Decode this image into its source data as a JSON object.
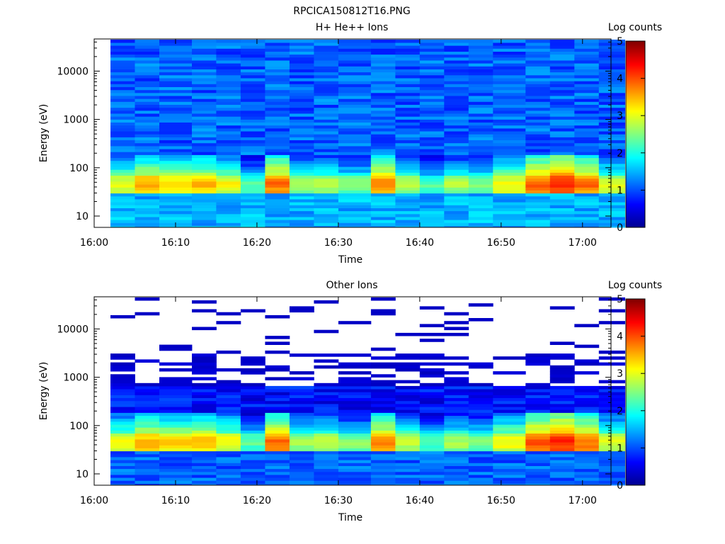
{
  "figure_title": "RPCICA150812T16.PNG",
  "colors": {
    "colormap": [
      "#00008f",
      "#0000ff",
      "#0080ff",
      "#00ffff",
      "#80ff80",
      "#ffff00",
      "#ff8000",
      "#ff0000",
      "#800000"
    ],
    "background": "#ffffff",
    "axis": "#000000"
  },
  "chart_data": [
    {
      "type": "heatmap",
      "id": "top",
      "title": "H+ He++ Ions",
      "xlabel": "Time",
      "ylabel": "Energy (eV)",
      "yscale": "log",
      "x_ticks": [
        "16:00",
        "16:10",
        "16:20",
        "16:30",
        "16:40",
        "16:50",
        "17:00"
      ],
      "y_ticks": [
        "10",
        "100",
        "1000",
        "10000"
      ],
      "colorbar": {
        "label": "Log counts",
        "ticks": [
          "0",
          "1",
          "2",
          "3",
          "4",
          "5"
        ],
        "range": [
          0,
          5
        ]
      },
      "time_columns_start": [
        "16:02",
        "16:05",
        "16:08",
        "16:12",
        "16:15",
        "16:18",
        "16:21",
        "16:24",
        "16:27",
        "16:30",
        "16:34",
        "16:37",
        "16:40",
        "16:43",
        "16:46",
        "16:49",
        "16:53",
        "16:56",
        "16:59",
        "17:02"
      ],
      "energy_band_peak_levels": [
        3.1,
        3.6,
        3.4,
        3.5,
        3.2,
        2.4,
        3.9,
        2.8,
        2.9,
        2.6,
        3.8,
        2.9,
        2.4,
        2.8,
        2.6,
        3.2,
        4.0,
        4.3,
        3.9,
        3.0
      ],
      "background_level": 1.1
    },
    {
      "type": "heatmap",
      "id": "bottom",
      "title": "Other Ions",
      "xlabel": "Time",
      "ylabel": "Energy (eV)",
      "yscale": "log",
      "x_ticks": [
        "16:00",
        "16:10",
        "16:20",
        "16:30",
        "16:40",
        "16:50",
        "17:00"
      ],
      "y_ticks": [
        "10",
        "100",
        "1000",
        "10000"
      ],
      "colorbar": {
        "label": "Log counts",
        "ticks": [
          "0",
          "1",
          "2",
          "3",
          "4",
          "5"
        ],
        "range": [
          0,
          5
        ]
      },
      "time_columns_start": [
        "16:02",
        "16:05",
        "16:08",
        "16:12",
        "16:15",
        "16:18",
        "16:21",
        "16:24",
        "16:27",
        "16:30",
        "16:34",
        "16:37",
        "16:40",
        "16:43",
        "16:46",
        "16:49",
        "16:53",
        "16:56",
        "16:59",
        "17:02"
      ],
      "energy_band_peak_levels": [
        3.1,
        3.6,
        3.4,
        3.5,
        3.2,
        2.4,
        3.9,
        2.8,
        2.9,
        2.6,
        3.8,
        2.9,
        2.4,
        2.8,
        2.6,
        3.2,
        4.0,
        4.3,
        3.9,
        3.0
      ],
      "background_level": 0.6
    }
  ]
}
